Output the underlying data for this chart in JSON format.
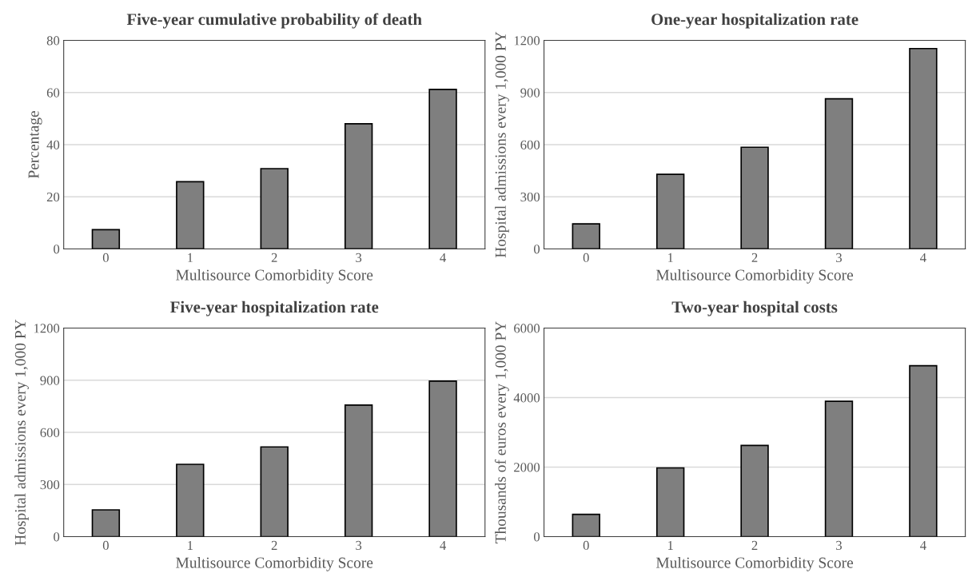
{
  "chart_data": [
    {
      "type": "bar",
      "title": "Five-year cumulative probability of death",
      "xlabel": "Multisource Comorbidity Score",
      "ylabel": "Percentage",
      "categories": [
        "0",
        "1",
        "2",
        "3",
        "4"
      ],
      "values": [
        7.4,
        25.8,
        30.8,
        48,
        61.2
      ],
      "color": "#7f7f7f",
      "ylim": [
        0,
        80
      ],
      "yticks": [
        0,
        20,
        40,
        60,
        80
      ],
      "grid": "y"
    },
    {
      "type": "bar",
      "title": "One-year hospitalization rate",
      "xlabel": "Multisource Comorbidity Score",
      "ylabel": "Hospital admissions every 1,000 PY",
      "categories": [
        "0",
        "1",
        "2",
        "3",
        "4"
      ],
      "values": [
        144,
        429,
        585,
        864,
        1153
      ],
      "color": "#7f7f7f",
      "ylim": [
        0,
        1200
      ],
      "yticks": [
        0,
        300,
        600,
        900,
        1200
      ],
      "grid": "y"
    },
    {
      "type": "bar",
      "title": "Five-year hospitalization rate",
      "xlabel": "Multisource Comorbidity Score",
      "ylabel": "Hospital admissions every 1,000 PY",
      "categories": [
        "0",
        "1",
        "2",
        "3",
        "4"
      ],
      "values": [
        154,
        416,
        516,
        757,
        895
      ],
      "color": "#7f7f7f",
      "ylim": [
        0,
        1200
      ],
      "yticks": [
        0,
        300,
        600,
        900,
        1200
      ],
      "grid": "y"
    },
    {
      "type": "bar",
      "title": "Two-year hospital costs",
      "xlabel": "Multisource Comorbidity Score",
      "ylabel": "Thousands of euros every 1,000 PY",
      "categories": [
        "0",
        "1",
        "2",
        "3",
        "4"
      ],
      "values": [
        639,
        1976,
        2625,
        3894,
        4917
      ],
      "color": "#7f7f7f",
      "ylim": [
        0,
        6000
      ],
      "yticks": [
        0,
        2000,
        4000,
        6000
      ],
      "grid": "y"
    }
  ]
}
